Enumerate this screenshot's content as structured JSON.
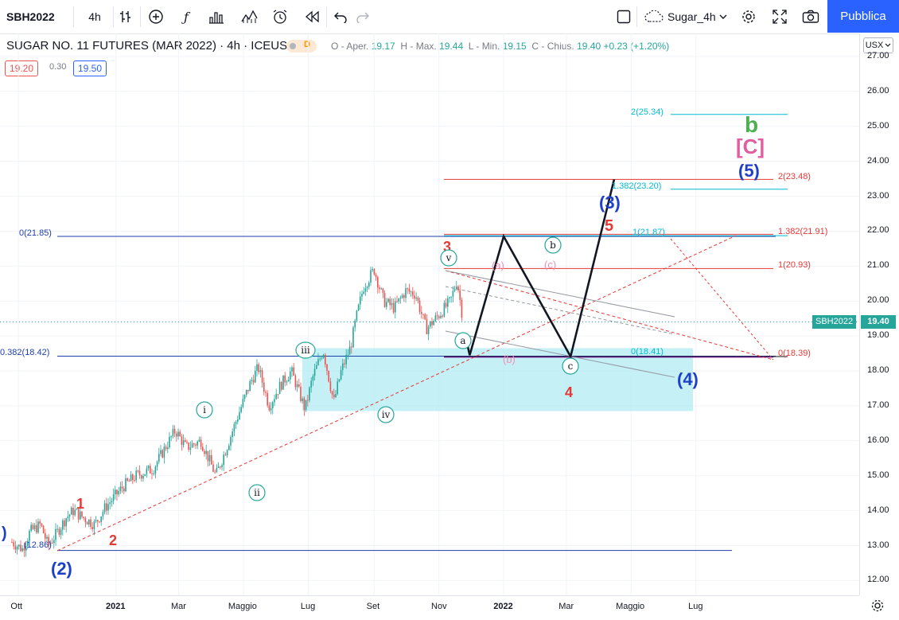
{
  "toolbar": {
    "symbol": "SBH2022",
    "interval": "4h",
    "template_name": "Sugar_4h",
    "publish_label": "Pubblica",
    "icons": [
      "indicators-icon",
      "add-icon",
      "fx-icon",
      "bar-style-icon",
      "compare-icon",
      "alert-icon",
      "replay-icon",
      "undo-icon",
      "redo-icon",
      "layout-icon",
      "cloud-icon",
      "settings-icon",
      "fullscreen-icon",
      "camera-icon"
    ]
  },
  "legend": {
    "title": "SUGAR NO. 11 FUTURES (MAR 2022) · 4h · ICEUS",
    "badge": "D",
    "open_label": "O - Aper.",
    "open": "19.17",
    "high_label": "H - Max.",
    "high": "19.44",
    "low_label": "L - Min.",
    "low": "19.15",
    "close_label": "C - Chius.",
    "close": "19.40",
    "change": "+0.23 (+1.20%)",
    "bid": "19.20",
    "spread": "0.30",
    "ask": "19.50"
  },
  "currency": "USX",
  "colors": {
    "up": "#26a69a",
    "down": "#ef5350",
    "accent": "#2962ff",
    "zone": "#b2ebf2",
    "wave_red": "#e53935",
    "wave_blue": "#1e40c8",
    "wave_green": "#4caf50",
    "wave_pink": "#e05ea0",
    "teal": "#00bcd4"
  },
  "chart_data": {
    "type": "candlestick",
    "y_ticks": [
      "12.00",
      "13.00",
      "14.00",
      "15.00",
      "16.00",
      "17.00",
      "18.00",
      "19.00",
      "20.00",
      "21.00",
      "22.00",
      "23.00",
      "24.00",
      "25.00",
      "26.00",
      "27.00"
    ],
    "x_ticks": [
      "Ott",
      "2021",
      "Mar",
      "Maggio",
      "Lug",
      "Set",
      "Nov",
      "2022",
      "Mar",
      "Maggio",
      "Lug"
    ],
    "last_price_label": "SBH2022",
    "last_price": "19.40",
    "price_path": [
      [
        "2020-09-25",
        13.1
      ],
      [
        "2020-10-05",
        12.9
      ],
      [
        "2020-10-12",
        13.4
      ],
      [
        "2020-10-22",
        13.6
      ],
      [
        "2020-10-29",
        13.0
      ],
      [
        "2020-11-05",
        13.3
      ],
      [
        "2020-11-15",
        13.8
      ],
      [
        "2020-11-22",
        14.0
      ],
      [
        "2020-12-01",
        13.8
      ],
      [
        "2020-12-12",
        13.6
      ],
      [
        "2020-12-22",
        14.1
      ],
      [
        "2021-01-08",
        14.7
      ],
      [
        "2021-01-20",
        15.0
      ],
      [
        "2021-02-05",
        15.2
      ],
      [
        "2021-02-20",
        16.0
      ],
      [
        "2021-02-26",
        16.3
      ],
      [
        "2021-03-08",
        15.8
      ],
      [
        "2021-03-22",
        16.0
      ],
      [
        "2021-04-05",
        15.0
      ],
      [
        "2021-04-15",
        15.8
      ],
      [
        "2021-04-28",
        16.9
      ],
      [
        "2021-05-08",
        17.7
      ],
      [
        "2021-05-15",
        18.1
      ],
      [
        "2021-05-25",
        17.0
      ],
      [
        "2021-06-05",
        17.6
      ],
      [
        "2021-06-15",
        18.0
      ],
      [
        "2021-06-28",
        16.9
      ],
      [
        "2021-07-05",
        17.8
      ],
      [
        "2021-07-15",
        18.6
      ],
      [
        "2021-07-25",
        17.1
      ],
      [
        "2021-08-01",
        18.0
      ],
      [
        "2021-08-10",
        18.7
      ],
      [
        "2021-08-15",
        19.5
      ],
      [
        "2021-08-22",
        20.4
      ],
      [
        "2021-09-01",
        20.9
      ],
      [
        "2021-09-10",
        20.0
      ],
      [
        "2021-09-20",
        19.8
      ],
      [
        "2021-10-01",
        20.3
      ],
      [
        "2021-10-10",
        20.2
      ],
      [
        "2021-10-20",
        19.2
      ],
      [
        "2021-11-01",
        19.6
      ],
      [
        "2021-11-12",
        20.0
      ],
      [
        "2021-11-18",
        20.6
      ],
      [
        "2021-11-24",
        19.4
      ]
    ],
    "projection_path": [
      [
        "2021-11-26",
        19.0
      ],
      [
        "2021-11-30",
        18.45
      ],
      [
        "2022-01-01",
        21.85
      ],
      [
        "2022-03-05",
        18.41
      ],
      [
        "2022-04-15",
        23.48
      ]
    ],
    "levels": [
      {
        "label": "0(21.85)",
        "value": 21.85,
        "color": "#1e3fa8"
      },
      {
        "label": "0.382(18.42)",
        "value": 18.42,
        "color": "#1e3fa8"
      },
      {
        "label": "(12.86)",
        "value": 12.86,
        "color": "#1e3fa8"
      },
      {
        "label": "2(25.34)",
        "value": 25.34,
        "color": "#00bcd4"
      },
      {
        "label": "1.382(23.20)",
        "value": 23.2,
        "color": "#00bcd4"
      },
      {
        "label": "1(21.87)",
        "value": 21.87,
        "color": "#00bcd4"
      },
      {
        "label": "0(18.41)",
        "value": 18.41,
        "color": "#00bcd4"
      },
      {
        "label": "2(23.48)",
        "value": 23.48,
        "color": "#e53935"
      },
      {
        "label": "1.382(21.91)",
        "value": 21.91,
        "color": "#e53935"
      },
      {
        "label": "1(20.93)",
        "value": 20.93,
        "color": "#e53935"
      },
      {
        "label": "0(18.39)",
        "value": 18.39,
        "color": "#e53935"
      }
    ],
    "wave_labels": [
      {
        "text": ")",
        "color": "#1e40c8"
      },
      {
        "text": "(2)",
        "color": "#1e40c8"
      },
      {
        "text": "1",
        "color": "#e53935"
      },
      {
        "text": "2",
        "color": "#e53935"
      },
      {
        "text": "3",
        "color": "#e53935"
      },
      {
        "text": "4",
        "color": "#e53935"
      },
      {
        "text": "5",
        "color": "#e53935"
      },
      {
        "text": "i",
        "color": "#26a69a",
        "circled": true
      },
      {
        "text": "ii",
        "color": "#26a69a",
        "circled": true
      },
      {
        "text": "iii",
        "color": "#26a69a",
        "circled": true
      },
      {
        "text": "iv",
        "color": "#26a69a",
        "circled": true
      },
      {
        "text": "v",
        "color": "#26a69a",
        "circled": true
      },
      {
        "text": "a",
        "color": "#26a69a",
        "circled": true
      },
      {
        "text": "b",
        "color": "#26a69a",
        "circled": true
      },
      {
        "text": "c",
        "color": "#26a69a",
        "circled": true
      },
      {
        "text": "(a)",
        "color": "#f48fb1"
      },
      {
        "text": "(b)",
        "color": "#f48fb1"
      },
      {
        "text": "(c)",
        "color": "#f48fb1"
      },
      {
        "text": "(3)",
        "color": "#1e40c8"
      },
      {
        "text": "(4)",
        "color": "#1e40c8"
      },
      {
        "text": "(5)",
        "color": "#1e40c8"
      },
      {
        "text": "[C]",
        "color": "#e05ea0"
      },
      {
        "text": "b",
        "color": "#4caf50"
      }
    ]
  }
}
